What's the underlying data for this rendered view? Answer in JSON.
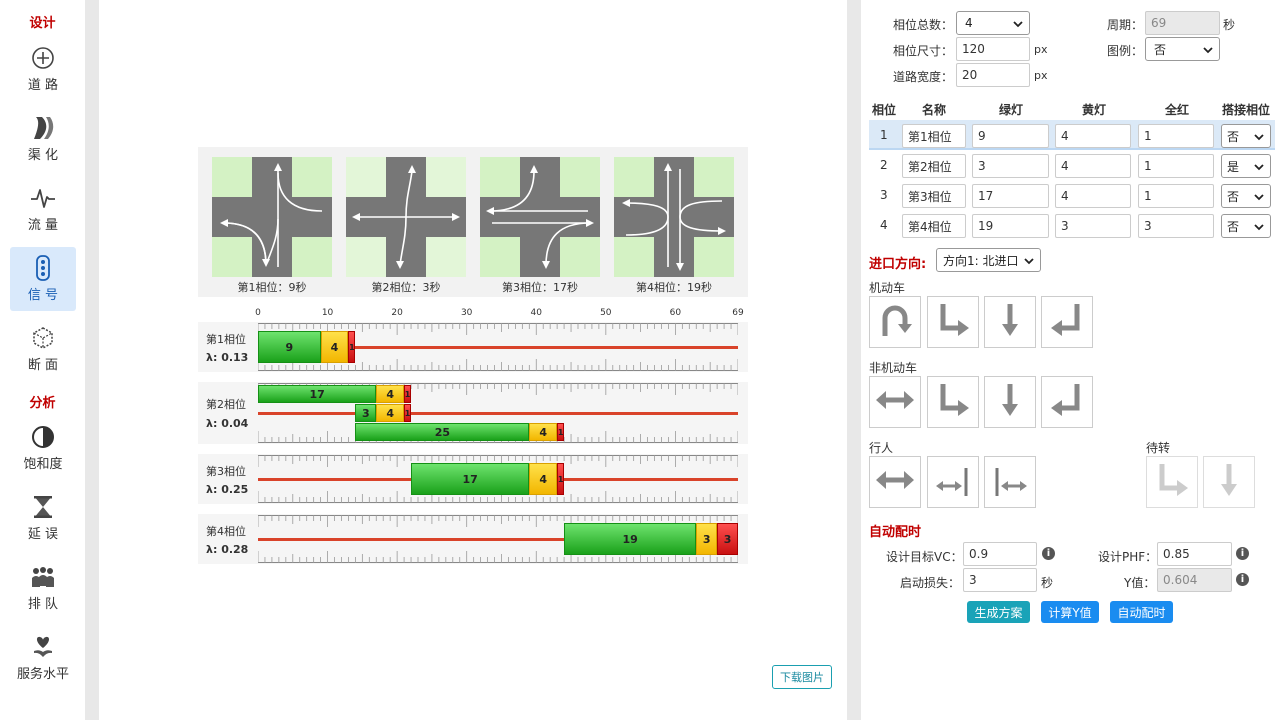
{
  "sidebar": {
    "design_title": "设计",
    "analysis_title": "分析",
    "items": [
      {
        "label": "道 路",
        "icon": "crosshair-icon"
      },
      {
        "label": "渠 化",
        "icon": "curve-road-icon"
      },
      {
        "label": "流 量",
        "icon": "pulse-icon"
      },
      {
        "label": "信 号",
        "icon": "traffic-light-icon"
      },
      {
        "label": "断 面",
        "icon": "cube-icon"
      },
      {
        "label": "饱和度",
        "icon": "half-circle-icon"
      },
      {
        "label": "延 误",
        "icon": "hourglass-icon"
      },
      {
        "label": "排 队",
        "icon": "queue-people-icon"
      },
      {
        "label": "服务水平",
        "icon": "heart-hand-icon"
      }
    ],
    "active_item": "信 号"
  },
  "diagram": {
    "phases": [
      {
        "caption": "第1相位：9秒"
      },
      {
        "caption": "第2相位：3秒"
      },
      {
        "caption": "第3相位：17秒"
      },
      {
        "caption": "第4相位：19秒"
      }
    ]
  },
  "timeline": {
    "scale_labels": [
      "0",
      "10",
      "20",
      "30",
      "40",
      "50",
      "60",
      "69"
    ],
    "cycle": 69,
    "tracks": [
      {
        "name": "第1相位",
        "lambda": "λ: 0.13",
        "rows": [
          [
            {
              "t": "g",
              "start": 0,
              "dur": 9,
              "label": "9"
            },
            {
              "t": "y",
              "start": 9,
              "dur": 4,
              "label": "4"
            },
            {
              "t": "r",
              "start": 13,
              "dur": 1,
              "label": "1"
            }
          ]
        ]
      },
      {
        "name": "第2相位",
        "lambda": "λ: 0.04",
        "rows": [
          [
            {
              "t": "g",
              "start": 0,
              "dur": 17,
              "label": "17"
            },
            {
              "t": "y",
              "start": 17,
              "dur": 4,
              "label": "4"
            },
            {
              "t": "r",
              "start": 21,
              "dur": 1,
              "label": "1"
            }
          ],
          [
            {
              "t": "g",
              "start": 14,
              "dur": 3,
              "label": "3"
            },
            {
              "t": "y",
              "start": 17,
              "dur": 4,
              "label": "4"
            },
            {
              "t": "r",
              "start": 21,
              "dur": 1,
              "label": "1"
            }
          ],
          [
            {
              "t": "g",
              "start": 14,
              "dur": 25,
              "label": "25"
            },
            {
              "t": "y",
              "start": 39,
              "dur": 4,
              "label": "4"
            },
            {
              "t": "r",
              "start": 43,
              "dur": 1,
              "label": "1"
            }
          ]
        ]
      },
      {
        "name": "第3相位",
        "lambda": "λ: 0.25",
        "rows": [
          [
            {
              "t": "g",
              "start": 22,
              "dur": 17,
              "label": "17"
            },
            {
              "t": "y",
              "start": 39,
              "dur": 4,
              "label": "4"
            },
            {
              "t": "r",
              "start": 43,
              "dur": 1,
              "label": "1"
            }
          ]
        ]
      },
      {
        "name": "第4相位",
        "lambda": "λ: 0.28",
        "rows": [
          [
            {
              "t": "g",
              "start": 44,
              "dur": 19,
              "label": "19"
            },
            {
              "t": "y",
              "start": 63,
              "dur": 3,
              "label": "3"
            },
            {
              "t": "r",
              "start": 66,
              "dur": 3,
              "label": "3"
            }
          ]
        ]
      }
    ]
  },
  "download_label": "下载图片",
  "settings": {
    "phase_count_label": "相位总数：",
    "phase_count_value": "4",
    "cycle_label": "周期：",
    "cycle_value": "69",
    "cycle_unit": "秒",
    "phase_size_label": "相位尺寸：",
    "phase_size_value": "120",
    "phase_size_unit": "px",
    "legend_label": "图例：",
    "legend_value": "否",
    "road_width_label": "道路宽度：",
    "road_width_value": "20",
    "road_width_unit": "px"
  },
  "phase_table": {
    "headers": [
      "相位",
      "名称",
      "绿灯",
      "黄灯",
      "全红",
      "搭接相位"
    ],
    "rows": [
      {
        "no": "1",
        "name": "第1相位",
        "green": "9",
        "yellow": "4",
        "red": "1",
        "overlap": "否"
      },
      {
        "no": "2",
        "name": "第2相位",
        "green": "3",
        "yellow": "4",
        "red": "1",
        "overlap": "是"
      },
      {
        "no": "3",
        "name": "第3相位",
        "green": "17",
        "yellow": "4",
        "red": "1",
        "overlap": "否"
      },
      {
        "no": "4",
        "name": "第4相位",
        "green": "19",
        "yellow": "3",
        "red": "3",
        "overlap": "否"
      }
    ]
  },
  "approach": {
    "label": "进口方向:",
    "value": "方向1: 北进口"
  },
  "vehicle": {
    "label": "机动车"
  },
  "nonmotor": {
    "label": "非机动车"
  },
  "pedestrian": {
    "label": "行人"
  },
  "waiting": {
    "label": "待转"
  },
  "auto": {
    "title": "自动配时",
    "vc_label": "设计目标VC：",
    "vc_value": "0.9",
    "phf_label": "设计PHF：",
    "phf_value": "0.85",
    "loss_label": "启动损失：",
    "loss_value": "3",
    "loss_unit": "秒",
    "y_label": "Y值：",
    "y_value": "0.604",
    "btn_generate": "生成方案",
    "btn_calc_y": "计算Y值",
    "btn_auto": "自动配时"
  },
  "colors": {
    "accent": "#c00000",
    "active_nav": "#d9e9fb",
    "btn_teal": "#1aa3b8",
    "btn_blue": "#1a8cf0",
    "green": "#1aa11a",
    "yellow": "#f2b600",
    "red": "#c81010"
  }
}
